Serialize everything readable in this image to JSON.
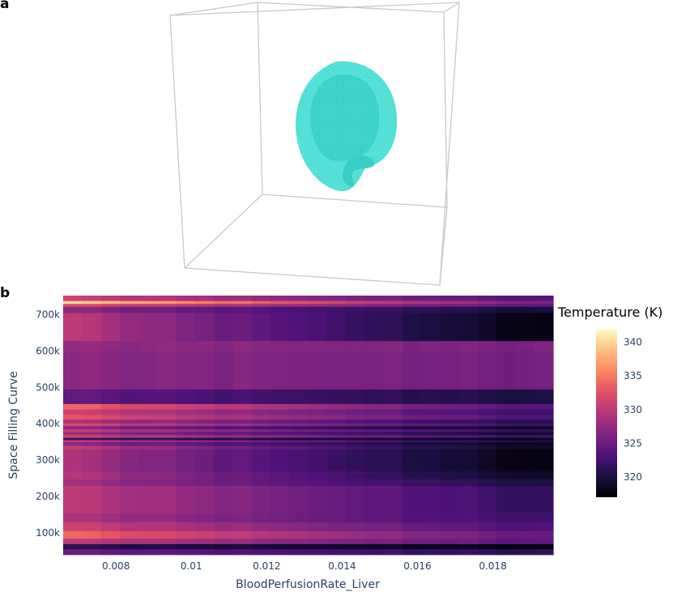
{
  "panels": {
    "a": "a",
    "b": "b"
  },
  "chart_data": [
    {
      "type": "3d-volume",
      "panel": "a",
      "color": "#40e0d0"
    },
    {
      "type": "heatmap",
      "panel": "b",
      "xlabel": "BloodPerfusionRate_Liver",
      "ylabel": "Space Filling Curve",
      "colorbar_title": "Temperature (K)",
      "xlim": [
        0.0066,
        0.0196
      ],
      "ylim": [
        40000,
        752000
      ],
      "x_ticks": [
        0.008,
        0.01,
        0.012,
        0.014,
        0.016,
        0.018
      ],
      "x_tick_labels": [
        "0.008",
        "0.01",
        "0.012",
        "0.014",
        "0.016",
        "0.018"
      ],
      "y_ticks": [
        100000,
        200000,
        300000,
        400000,
        500000,
        600000,
        700000
      ],
      "y_tick_labels": [
        "100k",
        "200k",
        "300k",
        "400k",
        "500k",
        "600k",
        "700k"
      ],
      "colorscale": "magma",
      "zlim": [
        317,
        342
      ],
      "z_ticks": [
        320,
        325,
        330,
        335,
        340
      ],
      "z_tick_labels": [
        "320",
        "325",
        "330",
        "335",
        "340"
      ],
      "x_columns": 26,
      "y_bands": [
        {
          "y0": 40000,
          "y1": 56000,
          "t0": 325.0,
          "t1": 321.0
        },
        {
          "y0": 56000,
          "y1": 70000,
          "t0": 321.0,
          "t1": 317.5
        },
        {
          "y0": 70000,
          "y1": 85000,
          "t0": 330.0,
          "t1": 324.0
        },
        {
          "y0": 85000,
          "y1": 106000,
          "t0": 334.0,
          "t1": 324.5
        },
        {
          "y0": 106000,
          "y1": 130000,
          "t0": 331.0,
          "t1": 323.0
        },
        {
          "y0": 130000,
          "y1": 155000,
          "t0": 329.0,
          "t1": 322.0
        },
        {
          "y0": 155000,
          "y1": 230000,
          "t0": 330.0,
          "t1": 321.5
        },
        {
          "y0": 230000,
          "y1": 248000,
          "t0": 328.5,
          "t1": 320.0
        },
        {
          "y0": 248000,
          "y1": 270000,
          "t0": 329.5,
          "t1": 318.5
        },
        {
          "y0": 270000,
          "y1": 330000,
          "t0": 329.0,
          "t1": 317.5
        },
        {
          "y0": 330000,
          "y1": 340000,
          "t0": 330.5,
          "t1": 318.5
        },
        {
          "y0": 340000,
          "y1": 350000,
          "t0": 327.0,
          "t1": 318.0
        },
        {
          "y0": 350000,
          "y1": 356000,
          "t0": 330.0,
          "t1": 320.0
        },
        {
          "y0": 356000,
          "y1": 362000,
          "t0": 322.0,
          "t1": 317.5
        },
        {
          "y0": 362000,
          "y1": 370000,
          "t0": 331.0,
          "t1": 322.0
        },
        {
          "y0": 370000,
          "y1": 378000,
          "t0": 328.0,
          "t1": 319.0
        },
        {
          "y0": 378000,
          "y1": 386000,
          "t0": 330.5,
          "t1": 321.0
        },
        {
          "y0": 386000,
          "y1": 394000,
          "t0": 327.0,
          "t1": 318.0
        },
        {
          "y0": 394000,
          "y1": 402000,
          "t0": 332.0,
          "t1": 322.0
        },
        {
          "y0": 402000,
          "y1": 412000,
          "t0": 329.0,
          "t1": 320.5
        },
        {
          "y0": 412000,
          "y1": 425000,
          "t0": 333.0,
          "t1": 323.0
        },
        {
          "y0": 425000,
          "y1": 440000,
          "t0": 331.0,
          "t1": 322.0
        },
        {
          "y0": 440000,
          "y1": 455000,
          "t0": 334.0,
          "t1": 323.5
        },
        {
          "y0": 455000,
          "y1": 495000,
          "t0": 324.5,
          "t1": 320.0
        },
        {
          "y0": 495000,
          "y1": 600000,
          "t0": 327.0,
          "t1": 325.5
        },
        {
          "y0": 600000,
          "y1": 628000,
          "t0": 327.5,
          "t1": 326.0
        },
        {
          "y0": 628000,
          "y1": 705000,
          "t0": 330.0,
          "t1": 317.5
        },
        {
          "y0": 705000,
          "y1": 722000,
          "t0": 327.0,
          "t1": 319.5
        },
        {
          "y0": 722000,
          "y1": 730000,
          "t0": 332.0,
          "t1": 324.0
        },
        {
          "y0": 730000,
          "y1": 738000,
          "t0": 340.0,
          "t1": 326.0
        },
        {
          "y0": 738000,
          "y1": 752000,
          "t0": 331.0,
          "t1": 323.5
        }
      ]
    }
  ]
}
